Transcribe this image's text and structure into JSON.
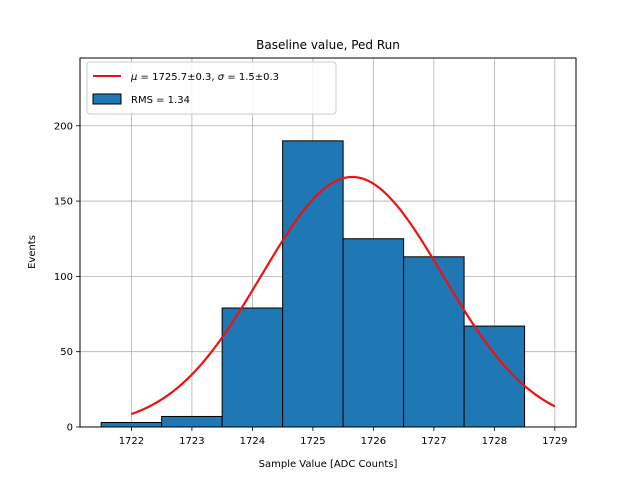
{
  "chart_data": {
    "type": "bar",
    "title": "Baseline value, Ped Run",
    "xlabel": "Sample Value [ADC Counts]",
    "ylabel": "Events",
    "xlim": [
      1721.15,
      1729.35
    ],
    "ylim": [
      0,
      245
    ],
    "xticks": [
      1722,
      1723,
      1724,
      1725,
      1726,
      1727,
      1728,
      1729
    ],
    "yticks": [
      0,
      50,
      100,
      150,
      200
    ],
    "grid": true,
    "legend_position": "top-left",
    "histogram": {
      "name": "RMS = 1.34",
      "bin_edges": [
        1721.5,
        1722.5,
        1723.5,
        1724.5,
        1725.5,
        1726.5,
        1727.5,
        1728.5
      ],
      "counts": [
        3,
        7,
        79,
        190,
        125,
        113,
        67
      ],
      "fill": "#1f77b4",
      "edge": "#000000"
    },
    "fit": {
      "name_prefix": "μ = 1725.7±0.3, σ = 1.5±0.3",
      "label_mu": "μ",
      "label_eq1": " = 1725.7±0.3, ",
      "label_sigma": "σ",
      "label_eq2": " = 1.5±0.3",
      "amplitude": 166,
      "mu": 1725.65,
      "sigma": 1.5,
      "x_range": [
        1722,
        1729
      ],
      "color": "#ee1111"
    }
  }
}
